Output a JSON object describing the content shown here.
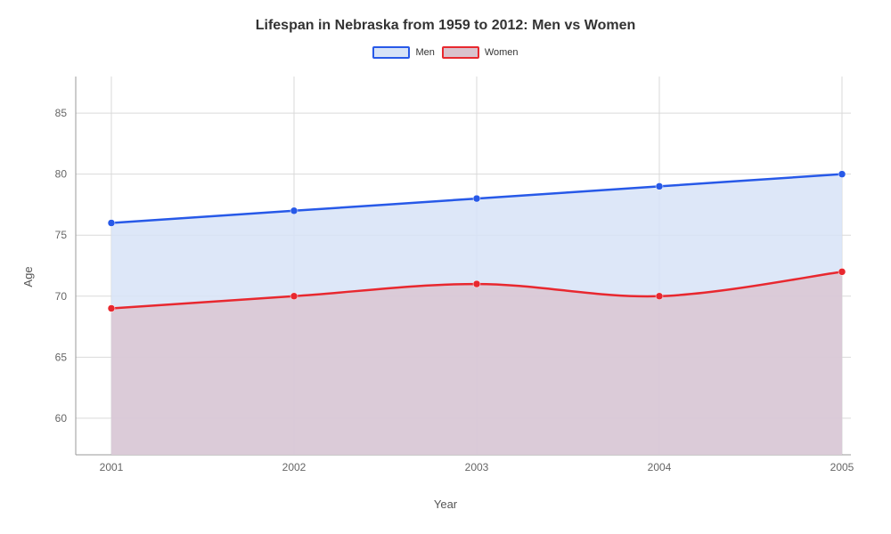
{
  "chart": {
    "type": "area-line",
    "title": "Lifespan in Nebraska from 1959 to 2012: Men vs Women",
    "title_fontsize": 16,
    "background_color": "#ffffff",
    "grid_color": "#d9d9d9",
    "x_axis": {
      "label": "Year",
      "categories": [
        "2001",
        "2002",
        "2003",
        "2004",
        "2005"
      ],
      "label_fontsize": 13
    },
    "y_axis": {
      "label": "Age",
      "min": 57,
      "max": 88,
      "ticks": [
        60,
        65,
        70,
        75,
        80,
        85
      ],
      "label_fontsize": 13
    },
    "series": [
      {
        "name": "Men",
        "values": [
          76,
          77,
          78,
          79,
          80
        ],
        "line_color": "#2759e8",
        "fill_color": "#d7e3f7",
        "fill_opacity": 0.85,
        "marker_color": "#2759e8",
        "line_width": 2.5,
        "marker_radius": 4
      },
      {
        "name": "Women",
        "values": [
          69,
          70,
          71,
          70,
          72
        ],
        "line_color": "#e8282f",
        "fill_color": "#d9c2cd",
        "fill_opacity": 0.75,
        "marker_color": "#e8282f",
        "line_width": 2.5,
        "marker_radius": 4
      }
    ],
    "legend": {
      "position": "top-center",
      "item_fontsize": 11
    },
    "tick_fontsize": 12
  }
}
